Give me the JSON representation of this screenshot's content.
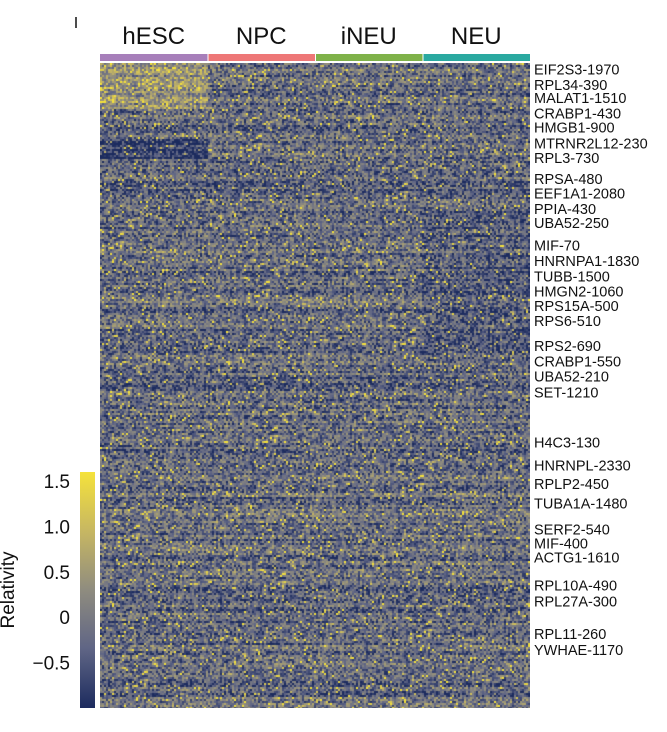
{
  "chart_data": {
    "type": "heatmap",
    "title": "",
    "xlabel": "",
    "ylabel": "",
    "column_groups": [
      {
        "name": "hESC",
        "color": "#a77fba"
      },
      {
        "name": "NPC",
        "color": "#ee7777"
      },
      {
        "name": "iNEU",
        "color": "#7fb24a"
      },
      {
        "name": "NEU",
        "color": "#2aa9a0"
      }
    ],
    "row_labels": [
      "EIF2S3-1970",
      "RPL34-390",
      "MALAT1-1510",
      "CRABP1-430",
      "HMGB1-900",
      "MTRNR2L12-230",
      "RPL3-730",
      "RPSA-480",
      "EEF1A1-2080",
      "PPIA-430",
      "UBA52-250",
      "MIF-70",
      "HNRNPA1-1830",
      "TUBB-1500",
      "HMGN2-1060",
      "RPS15A-500",
      "RPS6-510",
      "RPS2-690",
      "CRABP1-550",
      "UBA52-210",
      "SET-1210",
      "H4C3-130",
      "HNRNPL-2330",
      "RPLP2-450",
      "TUBA1A-1480",
      "SERF2-540",
      "MIF-400",
      "ACTG1-1610",
      "RPL10A-490",
      "RPL27A-300",
      "RPL11-260",
      "YWHAE-1170"
    ],
    "row_label_positions": [
      0.01,
      0.034,
      0.054,
      0.078,
      0.1,
      0.125,
      0.147,
      0.18,
      0.202,
      0.226,
      0.248,
      0.283,
      0.307,
      0.331,
      0.354,
      0.377,
      0.4,
      0.439,
      0.463,
      0.486,
      0.511,
      0.588,
      0.624,
      0.653,
      0.683,
      0.723,
      0.745,
      0.767,
      0.81,
      0.835,
      0.885,
      0.91
    ],
    "colorbar": {
      "ticks": [
        1.5,
        1.0,
        0.5,
        0,
        -0.5
      ],
      "tick_labels": [
        "1.5",
        "1.0",
        "0.5",
        "0",
        "−0.5"
      ],
      "range": [
        -1.0,
        1.6
      ],
      "colors": [
        "#1c2b5e",
        "#5f6585",
        "#8f8c7f",
        "#c7b762",
        "#f5e23b"
      ],
      "label": "Relativity"
    },
    "grid": false
  }
}
